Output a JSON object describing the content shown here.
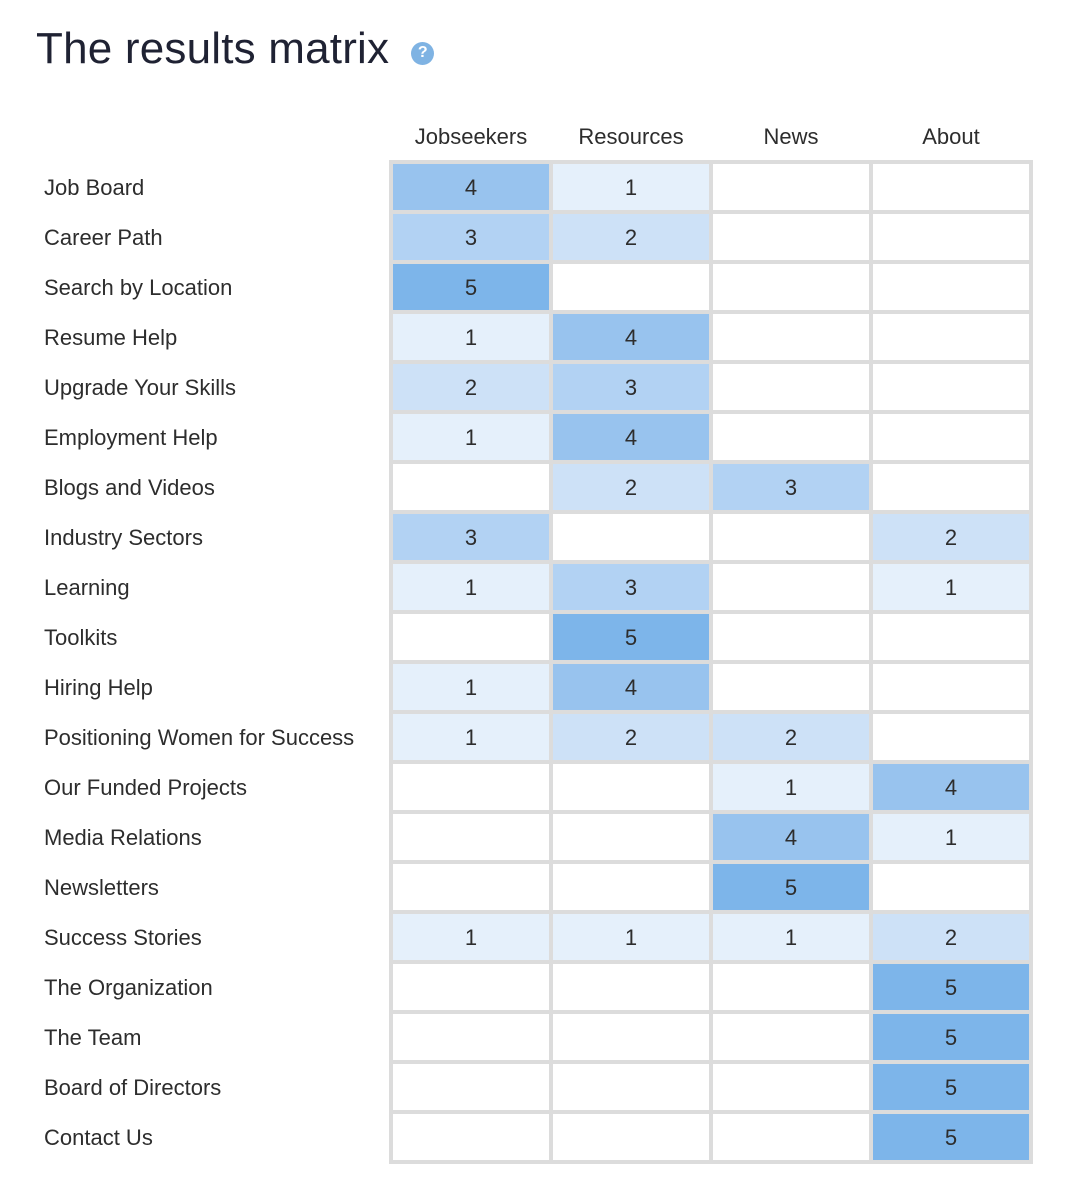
{
  "page": {
    "title": "The results matrix",
    "help_icon": "question-circle-icon",
    "help_glyph": "?"
  },
  "colors": {
    "grid_line": "#dcdcdc",
    "empty": "#ffffff",
    "level_1": "#e5f0fb",
    "level_2": "#cde1f7",
    "level_3": "#b2d2f3",
    "level_4": "#98c3ee",
    "level_5": "#7db5ea"
  },
  "chart_data": {
    "type": "heatmap",
    "title": "The results matrix",
    "columns": [
      "Jobseekers",
      "Resources",
      "News",
      "About"
    ],
    "rows": [
      {
        "label": "Job Board",
        "values": [
          4,
          1,
          null,
          null
        ]
      },
      {
        "label": "Career Path",
        "values": [
          3,
          2,
          null,
          null
        ]
      },
      {
        "label": "Search by Location",
        "values": [
          5,
          null,
          null,
          null
        ]
      },
      {
        "label": "Resume Help",
        "values": [
          1,
          4,
          null,
          null
        ]
      },
      {
        "label": "Upgrade Your Skills",
        "values": [
          2,
          3,
          null,
          null
        ]
      },
      {
        "label": "Employment Help",
        "values": [
          1,
          4,
          null,
          null
        ]
      },
      {
        "label": "Blogs and Videos",
        "values": [
          null,
          2,
          3,
          null
        ]
      },
      {
        "label": "Industry Sectors",
        "values": [
          3,
          null,
          null,
          2
        ]
      },
      {
        "label": "Learning",
        "values": [
          1,
          3,
          null,
          1
        ]
      },
      {
        "label": "Toolkits",
        "values": [
          null,
          5,
          null,
          null
        ]
      },
      {
        "label": "Hiring Help",
        "values": [
          1,
          4,
          null,
          null
        ]
      },
      {
        "label": "Positioning Women for Success",
        "values": [
          1,
          2,
          2,
          null
        ]
      },
      {
        "label": "Our Funded Projects",
        "values": [
          null,
          null,
          1,
          4
        ]
      },
      {
        "label": "Media Relations",
        "values": [
          null,
          null,
          4,
          1
        ]
      },
      {
        "label": "Newsletters",
        "values": [
          null,
          null,
          5,
          null
        ]
      },
      {
        "label": "Success Stories",
        "values": [
          1,
          1,
          1,
          2
        ]
      },
      {
        "label": "The Organization",
        "values": [
          null,
          null,
          null,
          5
        ]
      },
      {
        "label": "The Team",
        "values": [
          null,
          null,
          null,
          5
        ]
      },
      {
        "label": "Board of Directors",
        "values": [
          null,
          null,
          null,
          5
        ]
      },
      {
        "label": "Contact Us",
        "values": [
          null,
          null,
          null,
          5
        ]
      }
    ],
    "value_range": [
      1,
      5
    ]
  }
}
